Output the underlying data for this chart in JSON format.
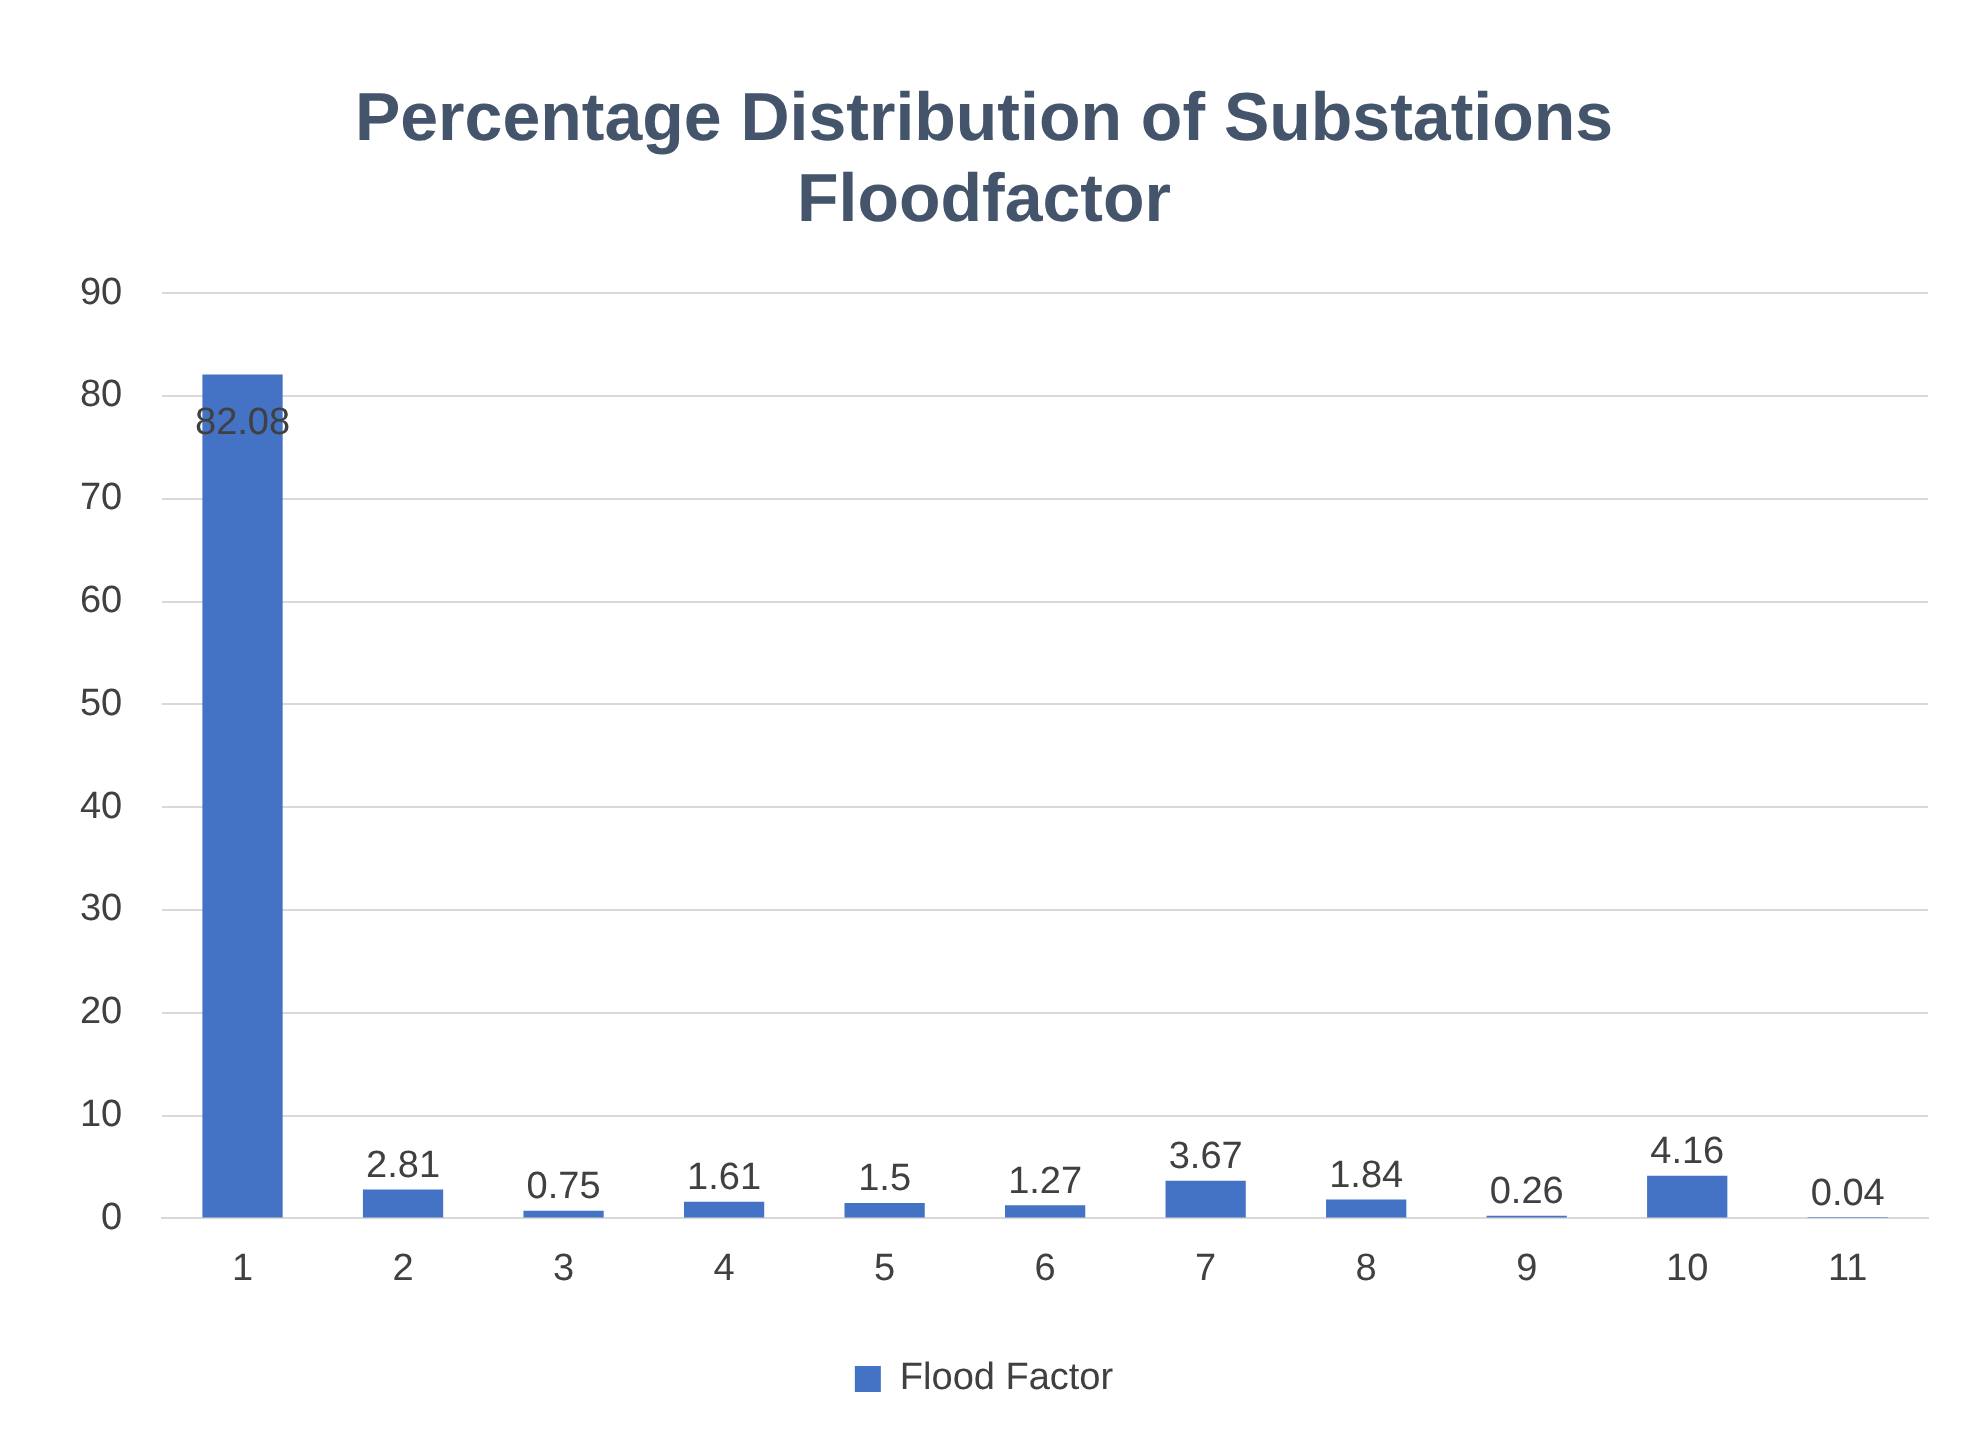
{
  "chart_data": {
    "type": "bar",
    "title": [
      "Percentage Distribution of Substations",
      "Floodfactor"
    ],
    "categories": [
      "1",
      "2",
      "3",
      "4",
      "5",
      "6",
      "7",
      "8",
      "9",
      "10",
      "11"
    ],
    "series": [
      {
        "name": "Flood Factor",
        "color": "#4472c4",
        "values": [
          82.08,
          2.81,
          0.75,
          1.61,
          1.5,
          1.27,
          3.67,
          1.84,
          0.26,
          4.16,
          0.04
        ]
      }
    ],
    "ylim": [
      0,
      90
    ],
    "yticks": [
      0,
      10,
      20,
      30,
      40,
      50,
      60,
      70,
      80,
      90
    ],
    "grid": "y",
    "legend": "bottom",
    "data_labels": true
  }
}
